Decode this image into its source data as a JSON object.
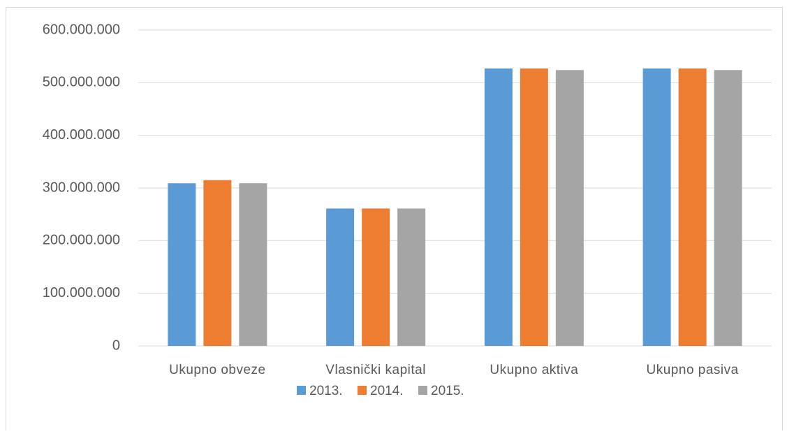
{
  "chart_data": {
    "type": "bar",
    "categories": [
      "Ukupno obveze",
      "Vlasnički kapital",
      "Ukupno aktiva",
      "Ukupno pasiva"
    ],
    "series": [
      {
        "name": "2013.",
        "color": "#5b9bd5",
        "values": [
          309000000,
          261000000,
          527000000,
          527000000
        ]
      },
      {
        "name": "2014.",
        "color": "#ed7d31",
        "values": [
          315000000,
          261000000,
          527000000,
          527000000
        ]
      },
      {
        "name": "2015.",
        "color": "#a5a5a5",
        "values": [
          309000000,
          261000000,
          524000000,
          524000000
        ]
      }
    ],
    "ylim": [
      0,
      600000000
    ],
    "yticks": [
      0,
      {
        "value": 100000000,
        "label": "100.000.000"
      },
      {
        "value": 200000000,
        "label": "200.000.000"
      },
      {
        "value": 300000000,
        "label": "300.000.000"
      },
      {
        "value": 400000000,
        "label": "400.000.000"
      },
      {
        "value": 500000000,
        "label": "500.000.000"
      },
      {
        "value": 600000000,
        "label": "600.000.000"
      }
    ],
    "grid": true,
    "legend": "bottom"
  }
}
